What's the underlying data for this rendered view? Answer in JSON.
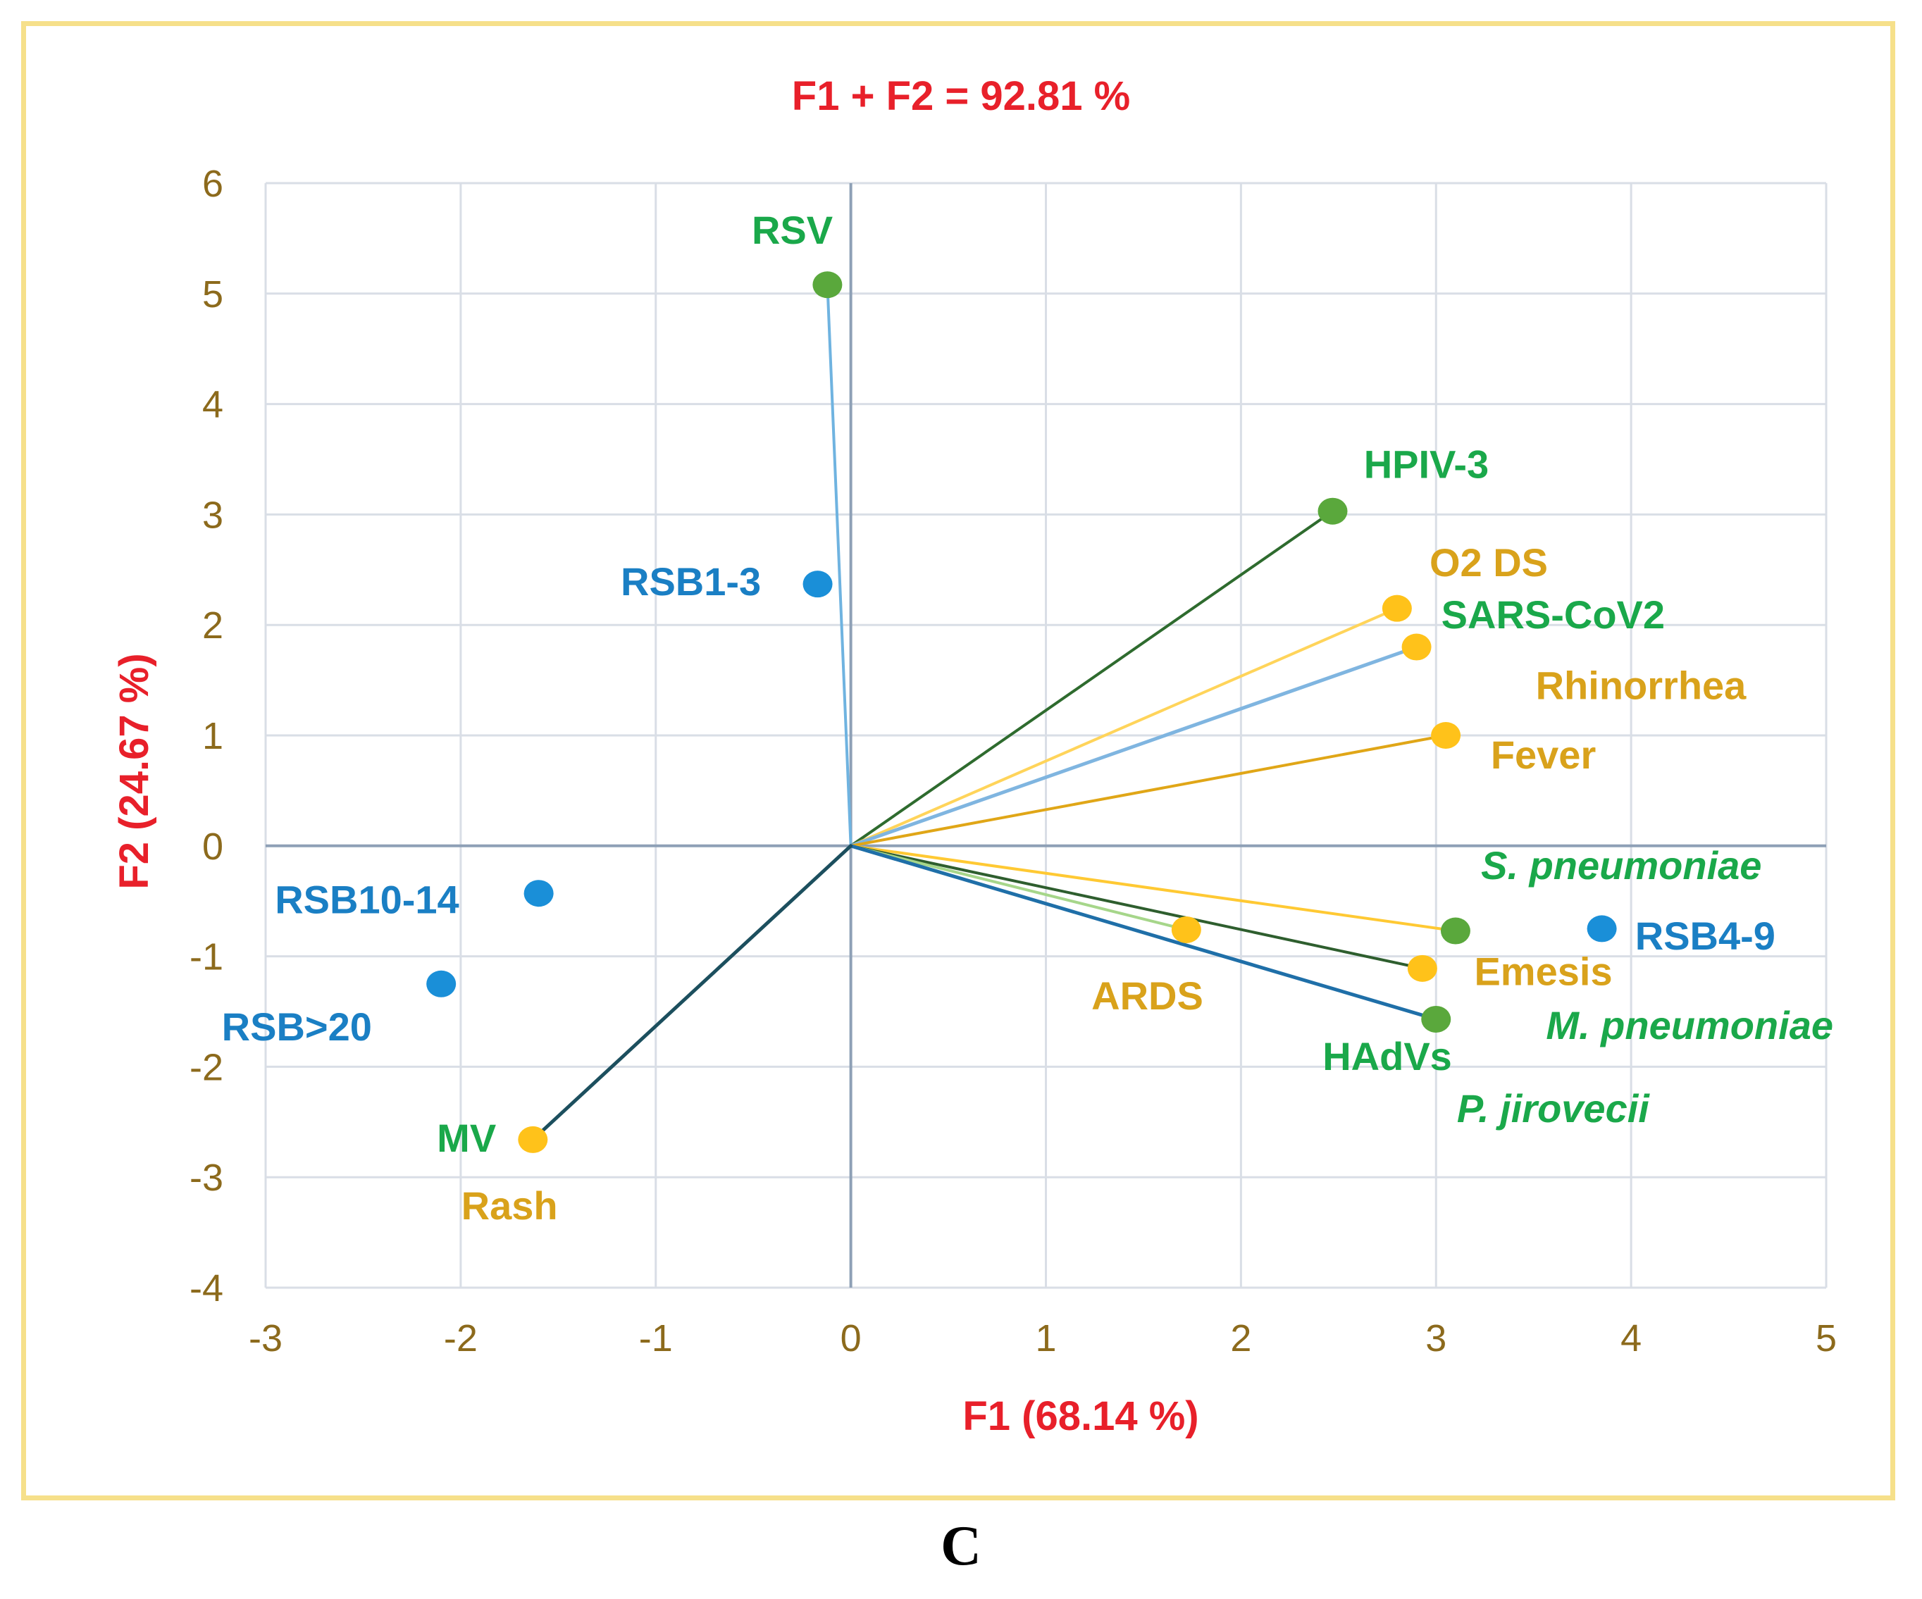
{
  "chart_data": {
    "type": "scatter",
    "title": "F1 + F2 = 92.81 %",
    "xlabel": "F1 (68.14 %)",
    "ylabel": "F2 (24.67 %)",
    "xlim": [
      -3,
      5
    ],
    "ylim": [
      -4,
      6
    ],
    "xticks": [
      "-3",
      "-2",
      "-1",
      "0",
      "1",
      "2",
      "3",
      "4",
      "5"
    ],
    "yticks": [
      "6",
      "5",
      "4",
      "3",
      "2",
      "1",
      "0",
      "-1",
      "-2",
      "-3",
      "-4"
    ],
    "grid": true,
    "colors": {
      "title": "#e8202a",
      "axis_title": "#e8202a",
      "tick": "#8c6a1c",
      "grid": "#d9dee6",
      "zero_axis": "#8ea0b6",
      "pathogen": "#1aa84a",
      "symptom": "#d9a21b",
      "severity": "#1a7fc4",
      "border": "#f6e08a"
    },
    "points": [
      {
        "label": "RSV",
        "x": -0.12,
        "y": 5.08,
        "group": "pathogen",
        "color": "#5aa83c",
        "italic": false
      },
      {
        "label": "HPIV-3",
        "x": 2.47,
        "y": 3.03,
        "group": "pathogen",
        "color": "#5aa83c",
        "italic": false
      },
      {
        "label": "O2 DS",
        "x": 2.8,
        "y": 2.15,
        "group": "symptom",
        "color": "#ffc21a",
        "italic": false
      },
      {
        "label": "SARS-CoV2",
        "x": 2.9,
        "y": 1.8,
        "group": "pathogen",
        "color": "#ffc21a",
        "italic": false
      },
      {
        "label": "Rhinorrhea",
        "x": 3.05,
        "y": 1.0,
        "group": "symptom",
        "color": "#ffc21a",
        "italic": false
      },
      {
        "label": "Fever",
        "x": 3.05,
        "y": 1.0,
        "group": "symptom",
        "color": "#ffc21a",
        "italic": false
      },
      {
        "label": "S. pneumoniae",
        "x": 3.1,
        "y": -0.77,
        "group": "pathogen",
        "color": "#5aa83c",
        "italic": true
      },
      {
        "label": "Emesis",
        "x": 2.93,
        "y": -1.11,
        "group": "symptom",
        "color": "#ffc21a",
        "italic": false
      },
      {
        "label": "M. pneumoniae",
        "x": 3.0,
        "y": -1.57,
        "group": "pathogen",
        "color": "#5aa83c",
        "italic": true
      },
      {
        "label": "HAdVs",
        "x": 3.0,
        "y": -1.57,
        "group": "pathogen",
        "color": "#5aa83c",
        "italic": false
      },
      {
        "label": "P. jirovecii",
        "x": 3.0,
        "y": -1.57,
        "group": "pathogen",
        "color": "#5aa83c",
        "italic": true
      },
      {
        "label": "ARDS",
        "x": 1.72,
        "y": -0.76,
        "group": "symptom",
        "color": "#ffc21a",
        "italic": false
      },
      {
        "label": "MV",
        "x": -1.63,
        "y": -2.66,
        "group": "pathogen",
        "color": "#ffc21a",
        "italic": false
      },
      {
        "label": "Rash",
        "x": -1.63,
        "y": -2.66,
        "group": "symptom",
        "color": "#ffc21a",
        "italic": false
      },
      {
        "label": "RSB1-3",
        "x": -0.17,
        "y": 2.37,
        "group": "severity",
        "color": "#1a8fd8",
        "italic": false
      },
      {
        "label": "RSB10-14",
        "x": -1.6,
        "y": -0.43,
        "group": "severity",
        "color": "#1a8fd8",
        "italic": false
      },
      {
        "label": "RSB>20",
        "x": -2.1,
        "y": -1.25,
        "group": "severity",
        "color": "#1a8fd8",
        "italic": false
      },
      {
        "label": "RSB4-9",
        "x": 3.85,
        "y": -0.75,
        "group": "severity",
        "color": "#1a8fd8",
        "italic": false
      }
    ],
    "vectors": [
      {
        "x": -0.12,
        "y": 5.08,
        "color": "#6fb3e0",
        "width": 4
      },
      {
        "x": 2.47,
        "y": 3.03,
        "color": "#2e6b2e",
        "width": 4
      },
      {
        "x": 2.8,
        "y": 2.15,
        "color": "#ffd45a",
        "width": 4
      },
      {
        "x": 2.9,
        "y": 1.8,
        "color": "#7fb5e0",
        "width": 5
      },
      {
        "x": 3.05,
        "y": 1.0,
        "color": "#e0a617",
        "width": 4
      },
      {
        "x": 3.1,
        "y": -0.77,
        "color": "#ffc933",
        "width": 4
      },
      {
        "x": 2.93,
        "y": -1.11,
        "color": "#2e5e2e",
        "width": 4
      },
      {
        "x": 1.72,
        "y": -0.76,
        "color": "#a6d68a",
        "width": 4
      },
      {
        "x": 3.0,
        "y": -1.57,
        "color": "#1f6fa8",
        "width": 5
      },
      {
        "x": -1.63,
        "y": -2.66,
        "color": "#1c4f5e",
        "width": 5
      }
    ],
    "labels": [
      {
        "text": "RSV",
        "x": -0.3,
        "y": 5.45,
        "color": "#1aa84a",
        "anchor": "middle",
        "italic": false
      },
      {
        "text": "HPIV-3",
        "x": 2.95,
        "y": 3.33,
        "color": "#1aa84a",
        "anchor": "middle",
        "italic": false
      },
      {
        "text": "O2 DS",
        "x": 3.27,
        "y": 2.44,
        "color": "#d9a21b",
        "anchor": "middle",
        "italic": false
      },
      {
        "text": "SARS-CoV2",
        "x": 3.6,
        "y": 1.97,
        "color": "#1aa84a",
        "anchor": "middle",
        "italic": false
      },
      {
        "text": "Rhinorrhea",
        "x": 4.05,
        "y": 1.33,
        "color": "#d9a21b",
        "anchor": "middle",
        "italic": false
      },
      {
        "text": "Fever",
        "x": 3.55,
        "y": 0.7,
        "color": "#d9a21b",
        "anchor": "middle",
        "italic": false
      },
      {
        "text": "S. pneumoniae",
        "x": 3.95,
        "y": -0.3,
        "color": "#1aa84a",
        "anchor": "middle",
        "italic": true
      },
      {
        "text": "RSB4-9",
        "x": 4.38,
        "y": -0.94,
        "color": "#1a7fc4",
        "anchor": "middle",
        "italic": false
      },
      {
        "text": "Emesis",
        "x": 3.55,
        "y": -1.26,
        "color": "#d9a21b",
        "anchor": "middle",
        "italic": false
      },
      {
        "text": "M. pneumoniae",
        "x": 4.3,
        "y": -1.75,
        "color": "#1aa84a",
        "anchor": "middle",
        "italic": true
      },
      {
        "text": "HAdVs",
        "x": 2.75,
        "y": -2.03,
        "color": "#1aa84a",
        "anchor": "middle",
        "italic": false
      },
      {
        "text": "P. jirovecii",
        "x": 3.6,
        "y": -2.5,
        "color": "#1aa84a",
        "anchor": "middle",
        "italic": true
      },
      {
        "text": "ARDS",
        "x": 1.52,
        "y": -1.48,
        "color": "#d9a21b",
        "anchor": "middle",
        "italic": false
      },
      {
        "text": "RSB1-3",
        "x": -0.82,
        "y": 2.27,
        "color": "#1a7fc4",
        "anchor": "middle",
        "italic": false
      },
      {
        "text": "RSB10-14",
        "x": -2.48,
        "y": -0.61,
        "color": "#1a7fc4",
        "anchor": "middle",
        "italic": false
      },
      {
        "text": "RSB>20",
        "x": -2.84,
        "y": -1.76,
        "color": "#1a7fc4",
        "anchor": "middle",
        "italic": false
      },
      {
        "text": "MV",
        "x": -1.97,
        "y": -2.77,
        "color": "#1aa84a",
        "anchor": "middle",
        "italic": false
      },
      {
        "text": "Rash",
        "x": -1.75,
        "y": -3.38,
        "color": "#d9a21b",
        "anchor": "middle",
        "italic": false
      }
    ]
  },
  "panel_letter": "C"
}
